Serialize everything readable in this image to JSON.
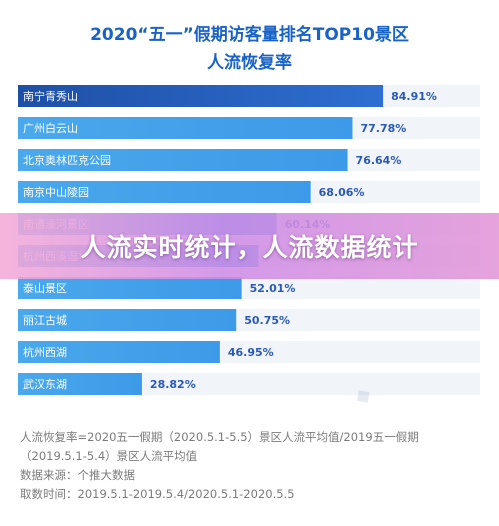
{
  "header": {
    "title_line1": "2020“五一”假期访客量排名TOP10景区",
    "title_line2": "人流恢复率"
  },
  "banner": {
    "text": "人流实时统计，人流数据统计"
  },
  "notes": {
    "line1": "人流恢复率=2020五一假期（2020.5.1-5.5）景区人流平均值/2019五一假期",
    "line2": "（2019.5.1-5.4）景区人流平均值",
    "line3": "数据来源：个推大数据",
    "line4": "取数时间：2019.5.1-2019.5.4/2020.5.1-2020.5.5"
  },
  "colors": {
    "title": "#1a63c6",
    "bar_dark": "#1e4fa6",
    "bar_light": "#4aa8ec",
    "value_text": "#2a5ab8",
    "track": "#f1f4f8"
  },
  "chart_data": {
    "type": "bar",
    "orientation": "horizontal",
    "title": "2020“五一”假期访客量排名TOP10景区人流恢复率",
    "categories": [
      "南宁青秀山",
      "广州白云山",
      "北京奥林匹克公园",
      "南京中山陵园",
      "南通濠河景区",
      "杭州西溪湿地",
      "泰山景区",
      "丽江古城",
      "杭州西湖",
      "武汉东湖"
    ],
    "values": [
      84.91,
      77.78,
      76.64,
      68.06,
      60.14,
      55.9,
      52.01,
      50.75,
      46.95,
      28.82
    ],
    "labels": [
      "84.91%",
      "77.78%",
      "76.64%",
      "68.06%",
      "60.14%",
      "",
      "52.01%",
      "50.75%",
      "46.95%",
      "28.82%"
    ],
    "unit": "%",
    "xlim": [
      0,
      100
    ]
  }
}
